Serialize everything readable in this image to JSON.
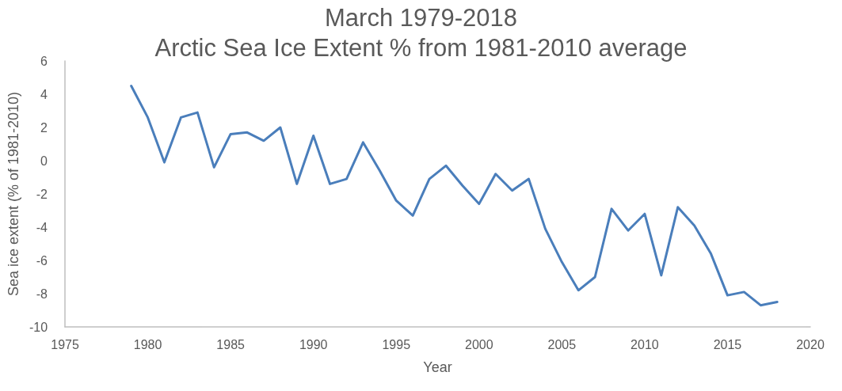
{
  "chart_data": {
    "type": "line",
    "title": "March 1979-2018",
    "subtitle": "Arctic Sea Ice Extent % from 1981-2010 average",
    "xlabel": "Year",
    "ylabel": "Sea ice extent (% of 1981-2010)",
    "x": [
      1979,
      1980,
      1981,
      1982,
      1983,
      1984,
      1985,
      1986,
      1987,
      1988,
      1989,
      1990,
      1991,
      1992,
      1993,
      1994,
      1995,
      1996,
      1997,
      1998,
      1999,
      2000,
      2001,
      2002,
      2003,
      2004,
      2005,
      2006,
      2007,
      2008,
      2009,
      2010,
      2011,
      2012,
      2013,
      2014,
      2015,
      2016,
      2017,
      2018
    ],
    "series": [
      {
        "color": "#4a7ebb",
        "values": [
          4.5,
          2.6,
          -0.1,
          2.6,
          2.9,
          -0.4,
          1.6,
          1.7,
          1.2,
          2.0,
          -1.4,
          1.5,
          -1.4,
          -1.1,
          1.1,
          -0.6,
          -2.4,
          -3.3,
          -1.1,
          -0.3,
          -1.5,
          -2.6,
          -0.8,
          -1.8,
          -1.1,
          -4.1,
          -6.1,
          -7.8,
          -7.0,
          -2.9,
          -4.2,
          -3.2,
          -6.9,
          -2.8,
          -3.9,
          -5.6,
          -8.1,
          -7.9,
          -8.7,
          -8.5
        ]
      }
    ],
    "xlim": [
      1975,
      2020
    ],
    "xticks": [
      1975,
      1980,
      1985,
      1990,
      1995,
      2000,
      2005,
      2010,
      2015,
      2020
    ],
    "ylim": [
      -10,
      6
    ],
    "yticks": [
      -10,
      -8,
      -6,
      -4,
      -2,
      0,
      2,
      4,
      6
    ],
    "grid": false,
    "marker": "none",
    "line_style": "solid"
  }
}
